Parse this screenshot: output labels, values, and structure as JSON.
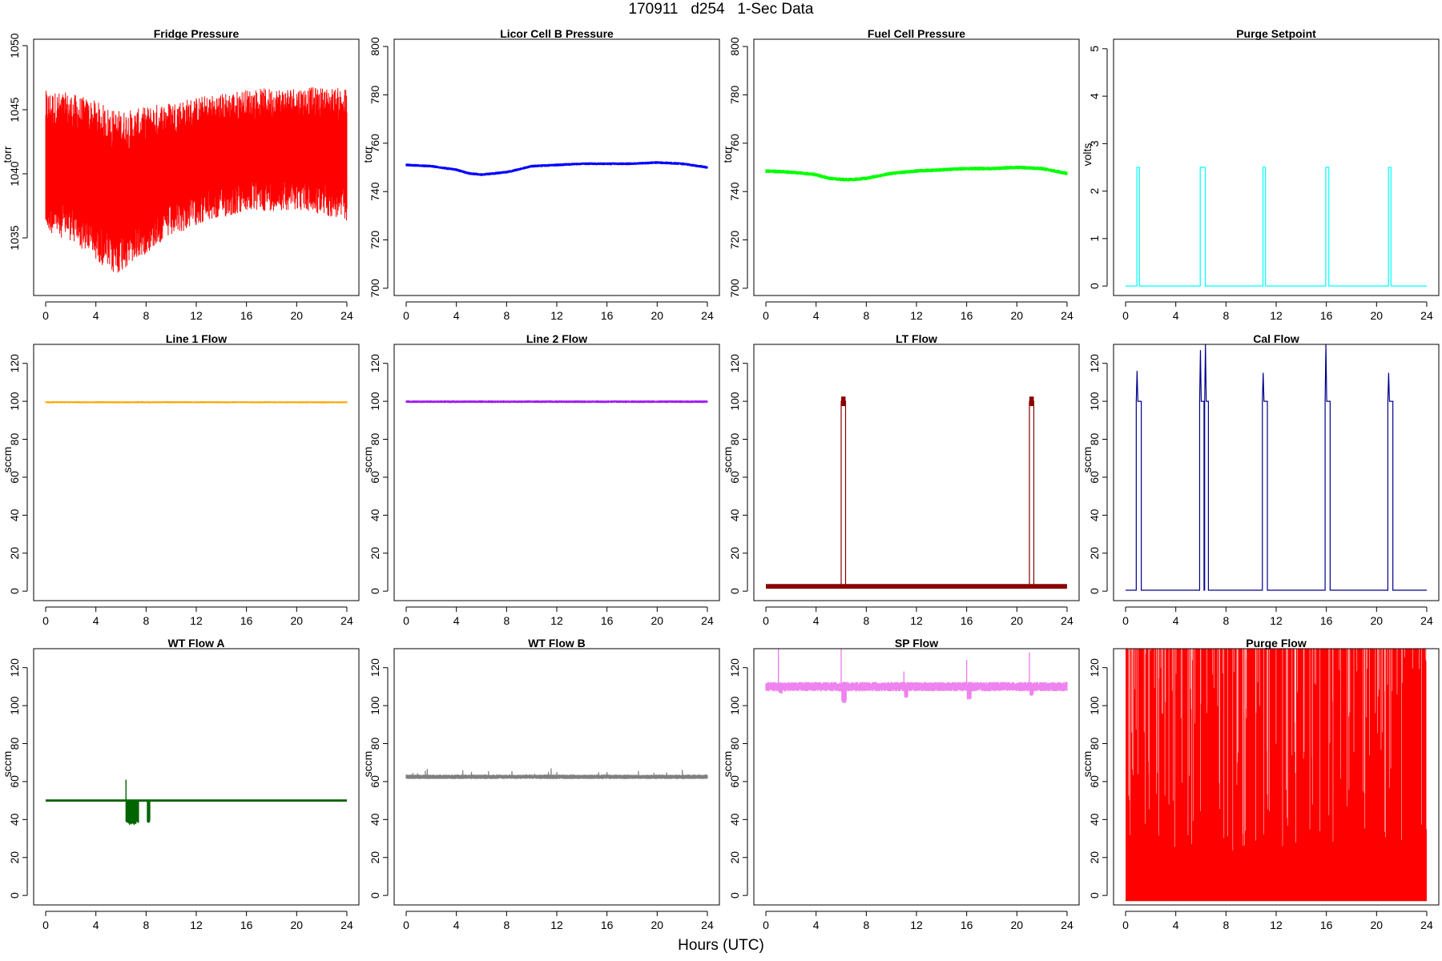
{
  "figure": {
    "title": "170911   d254   1-Sec Data",
    "xlabel": "Hours (UTC)"
  },
  "chart_data": [
    {
      "type": "line",
      "title": "Fridge Pressure",
      "ylabel": "torr",
      "color": "#ff0000",
      "xlim": [
        0,
        24
      ],
      "ylim": [
        1030.5,
        1050.5
      ],
      "xticks": [
        0,
        4,
        8,
        12,
        16,
        20,
        24
      ],
      "yticks": [
        1035,
        1040,
        1045,
        1050
      ],
      "series": [
        {
          "x": [
            0,
            2,
            4,
            5.5,
            7,
            9,
            12,
            16,
            20,
            24
          ],
          "y": [
            1041,
            1040.5,
            1039.5,
            1038.5,
            1039,
            1040,
            1041,
            1041.8,
            1042,
            1041.5
          ],
          "band": [
            5.5,
            5.8,
            6.2,
            6.5,
            6.0,
            5.5,
            5.0,
            4.8,
            4.8,
            5.2
          ]
        }
      ]
    },
    {
      "type": "line",
      "title": "Licor Cell B Pressure",
      "ylabel": "torr",
      "color": "#0000ff",
      "xlim": [
        0,
        24
      ],
      "ylim": [
        697,
        803
      ],
      "xticks": [
        0,
        4,
        8,
        12,
        16,
        20,
        24
      ],
      "yticks": [
        700,
        720,
        740,
        760,
        780,
        800
      ],
      "series": [
        {
          "x": [
            0,
            2,
            4,
            5,
            6,
            8,
            10,
            12,
            14,
            16,
            18,
            20,
            22,
            24
          ],
          "y": [
            751,
            750.5,
            749,
            747.5,
            747,
            748,
            750.5,
            751,
            751.5,
            751.5,
            751.5,
            752,
            751.5,
            750
          ],
          "band": [
            0.6
          ]
        }
      ]
    },
    {
      "type": "line",
      "title": "Fuel Cell Pressure",
      "ylabel": "torr",
      "color": "#00ff00",
      "xlim": [
        0,
        24
      ],
      "ylim": [
        697,
        803
      ],
      "xticks": [
        0,
        4,
        8,
        12,
        16,
        20,
        24
      ],
      "yticks": [
        700,
        720,
        740,
        760,
        780,
        800
      ],
      "series": [
        {
          "x": [
            0,
            2,
            4,
            5,
            6,
            7,
            8,
            10,
            12,
            14,
            16,
            18,
            20,
            22,
            24
          ],
          "y": [
            748.5,
            748,
            747,
            745.5,
            745,
            745,
            745.5,
            747.5,
            748.5,
            749,
            749.5,
            749.5,
            750,
            749.5,
            747.5
          ],
          "band": [
            0.8
          ]
        }
      ]
    },
    {
      "type": "line",
      "title": "Purge Setpoint",
      "ylabel": "volts",
      "color": "#00ffff",
      "xlim": [
        0,
        24
      ],
      "ylim": [
        -0.2,
        5.2
      ],
      "xticks": [
        0,
        4,
        8,
        12,
        16,
        20,
        24
      ],
      "yticks": [
        0,
        1,
        2,
        3,
        4,
        5
      ],
      "baseline": 0,
      "pulses": [
        {
          "x0": 0.9,
          "x1": 1.1,
          "y": 2.5
        },
        {
          "x0": 5.95,
          "x1": 6.35,
          "y": 2.5
        },
        {
          "x0": 10.95,
          "x1": 11.15,
          "y": 2.5
        },
        {
          "x0": 15.95,
          "x1": 16.2,
          "y": 2.5
        },
        {
          "x0": 20.95,
          "x1": 21.15,
          "y": 2.5
        }
      ]
    },
    {
      "type": "line",
      "title": "Line 1 Flow",
      "ylabel": "sccm",
      "color": "#ffa500",
      "xlim": [
        0,
        24
      ],
      "ylim": [
        -5,
        130
      ],
      "xticks": [
        0,
        4,
        8,
        12,
        16,
        20,
        24
      ],
      "yticks": [
        0,
        20,
        40,
        60,
        80,
        100,
        120
      ],
      "series": [
        {
          "x": [
            0,
            24
          ],
          "y": [
            99.5,
            99.5
          ],
          "band": [
            0.5
          ]
        }
      ]
    },
    {
      "type": "line",
      "title": "Line 2 Flow",
      "ylabel": "sccm",
      "color": "#a020f0",
      "xlim": [
        0,
        24
      ],
      "ylim": [
        -5,
        130
      ],
      "xticks": [
        0,
        4,
        8,
        12,
        16,
        20,
        24
      ],
      "yticks": [
        0,
        20,
        40,
        60,
        80,
        100,
        120
      ],
      "series": [
        {
          "x": [
            0,
            24
          ],
          "y": [
            99.8,
            99.8
          ],
          "band": [
            0.7
          ]
        }
      ]
    },
    {
      "type": "line",
      "title": "LT Flow",
      "ylabel": "sccm",
      "color": "#8b0000",
      "xlim": [
        0,
        24
      ],
      "ylim": [
        -5,
        130
      ],
      "xticks": [
        0,
        4,
        8,
        12,
        16,
        20,
        24
      ],
      "yticks": [
        0,
        20,
        40,
        60,
        80,
        100,
        120
      ],
      "baseline": 2.5,
      "baseline_band": 2.5,
      "pulses": [
        {
          "x0": 6.0,
          "x1": 6.35,
          "y": 100
        },
        {
          "x0": 21.0,
          "x1": 21.35,
          "y": 100
        }
      ]
    },
    {
      "type": "line",
      "title": "Cal Flow",
      "ylabel": "sccm",
      "color": "#00008b",
      "xlim": [
        0,
        24
      ],
      "ylim": [
        -5,
        130
      ],
      "xticks": [
        0,
        4,
        8,
        12,
        16,
        20,
        24
      ],
      "yticks": [
        0,
        20,
        40,
        60,
        80,
        100,
        120
      ],
      "baseline": 0.5,
      "pulses": [
        {
          "x0": 0.85,
          "x1": 1.25,
          "y": 100,
          "spike": 116
        },
        {
          "x0": 5.9,
          "x1": 6.25,
          "y": 100,
          "spike": 127
        },
        {
          "x0": 6.3,
          "x1": 6.6,
          "y": 100,
          "spike": 130
        },
        {
          "x0": 10.9,
          "x1": 11.3,
          "y": 100,
          "spike": 115
        },
        {
          "x0": 15.9,
          "x1": 16.3,
          "y": 100,
          "spike": 130
        },
        {
          "x0": 20.9,
          "x1": 21.3,
          "y": 100,
          "spike": 115
        }
      ]
    },
    {
      "type": "line",
      "title": "WT Flow A",
      "ylabel": "sccm",
      "color": "#006400",
      "xlim": [
        0,
        24
      ],
      "ylim": [
        -5,
        130
      ],
      "xticks": [
        0,
        4,
        8,
        12,
        16,
        20,
        24
      ],
      "yticks": [
        0,
        20,
        40,
        60,
        80,
        100,
        120
      ],
      "baseline": 50,
      "baseline_band": 0.7,
      "dips": [
        {
          "x0": 6.4,
          "x1": 7.4,
          "y": 37
        },
        {
          "x0": 8.1,
          "x1": 8.3,
          "y": 38
        }
      ],
      "spikes": [
        {
          "x": 6.4,
          "y": 61
        }
      ]
    },
    {
      "type": "line",
      "title": "WT Flow B",
      "ylabel": "sccm",
      "color": "#808080",
      "xlim": [
        0,
        24
      ],
      "ylim": [
        -5,
        130
      ],
      "xticks": [
        0,
        4,
        8,
        12,
        16,
        20,
        24
      ],
      "yticks": [
        0,
        20,
        40,
        60,
        80,
        100,
        120
      ],
      "series": [
        {
          "x": [
            0,
            24
          ],
          "y": [
            62.5,
            62.5
          ],
          "band": [
            1.2
          ]
        }
      ],
      "noise": 3
    },
    {
      "type": "line",
      "title": "SP Flow",
      "ylabel": "sccm",
      "color": "#ee82ee",
      "xlim": [
        0,
        24
      ],
      "ylim": [
        -5,
        130
      ],
      "xticks": [
        0,
        4,
        8,
        12,
        16,
        20,
        24
      ],
      "yticks": [
        0,
        20,
        40,
        60,
        80,
        100,
        120
      ],
      "series": [
        {
          "x": [
            0,
            24
          ],
          "y": [
            110,
            110
          ],
          "band": [
            2.5
          ]
        }
      ],
      "spikes": [
        {
          "x": 1.0,
          "y": 130
        },
        {
          "x": 6.0,
          "y": 130
        },
        {
          "x": 11.0,
          "y": 118
        },
        {
          "x": 16.0,
          "y": 124
        },
        {
          "x": 21.0,
          "y": 128
        }
      ],
      "dips": [
        {
          "x0": 1.05,
          "x1": 1.3,
          "y": 106
        },
        {
          "x0": 6.05,
          "x1": 6.4,
          "y": 101
        },
        {
          "x0": 11.05,
          "x1": 11.3,
          "y": 104
        },
        {
          "x0": 16.05,
          "x1": 16.35,
          "y": 103
        },
        {
          "x0": 21.05,
          "x1": 21.3,
          "y": 105
        }
      ]
    },
    {
      "type": "line",
      "title": "Purge Flow",
      "ylabel": "sccm",
      "color": "#ff0000",
      "xlim": [
        0,
        24
      ],
      "ylim": [
        -5,
        130
      ],
      "xticks": [
        0,
        4,
        8,
        12,
        16,
        20,
        24
      ],
      "yticks": [
        0,
        20,
        40,
        60,
        80,
        100,
        120
      ],
      "fill_range": [
        -3,
        130
      ]
    }
  ]
}
